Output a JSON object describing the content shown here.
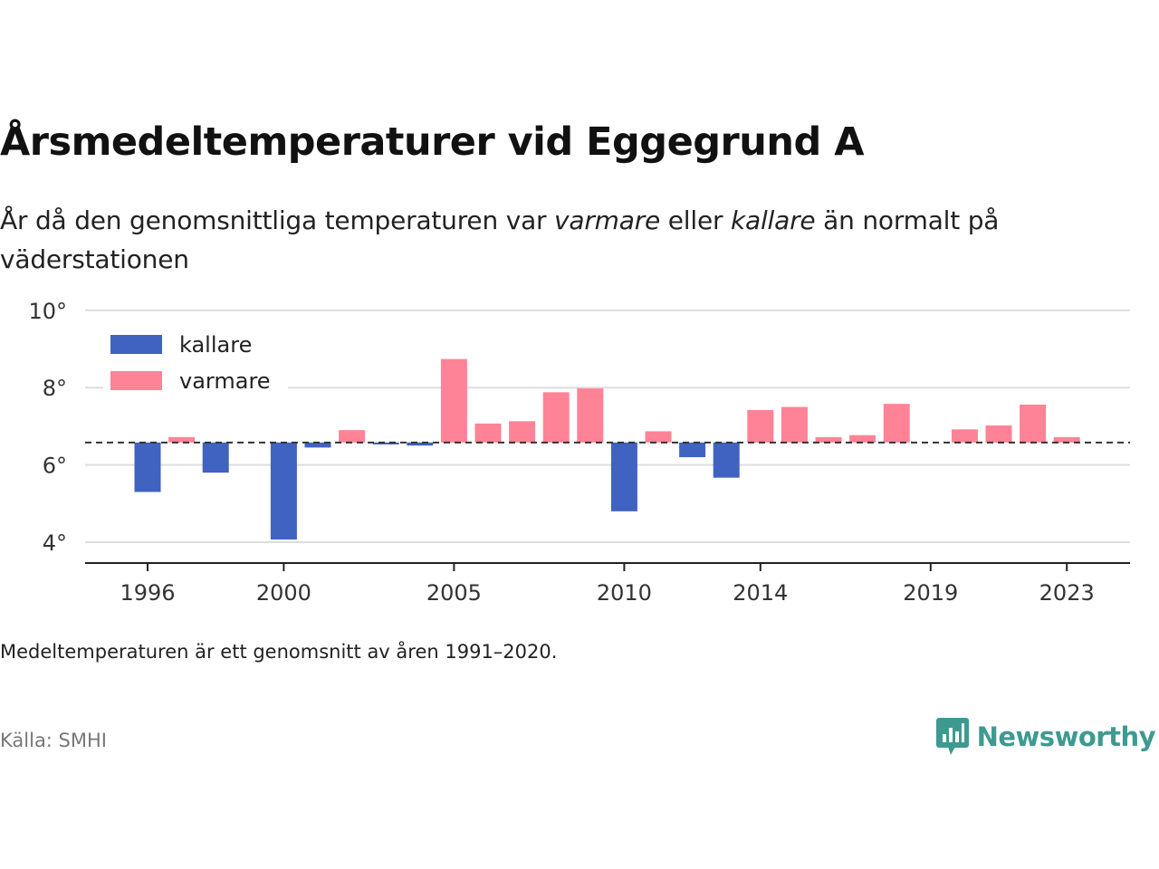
{
  "title": "Årsmedeltemperaturer vid Eggegrund A",
  "subtitle": {
    "part1": "År då den genomsnittliga temperaturen var ",
    "warmer_word": "varmare",
    "part2": " eller ",
    "colder_word": "kallare",
    "part3": " än normalt på väderstationen"
  },
  "note": "Medeltemperaturen är ett genomsnitt av åren 1991–2020.",
  "source": "Källa: SMHI",
  "brand": {
    "name": "Newsworthy",
    "icon": "newsworthy-logo-icon",
    "color": "#3e9a91"
  },
  "colors": {
    "colder": "#4062c0",
    "warmer": "#ff8396",
    "grid": "#dddddd",
    "axis": "#222222",
    "reference": "#333333"
  },
  "chart_data": {
    "type": "bar",
    "reference_value": 6.58,
    "reference_style": "dashed",
    "ylim": [
      3.5,
      10
    ],
    "yticks": [
      4,
      6,
      8,
      10
    ],
    "ytick_labels": [
      "4°",
      "6°",
      "8°",
      "10°"
    ],
    "xticks": [
      1996,
      2000,
      2005,
      2010,
      2014,
      2019,
      2023
    ],
    "xlim": [
      1994.2,
      2025
    ],
    "grid": true,
    "legend": {
      "placement": "top-left",
      "entries": [
        {
          "key": "colder",
          "label": "kallare"
        },
        {
          "key": "warmer",
          "label": "varmare"
        }
      ]
    },
    "series": [
      {
        "name": "kallare",
        "key": "colder",
        "x": [
          1996,
          1998,
          2000,
          2001,
          2003,
          2004,
          2010,
          2012,
          2013
        ],
        "values": [
          5.3,
          5.8,
          4.07,
          6.45,
          6.53,
          6.5,
          4.8,
          6.2,
          5.67
        ]
      },
      {
        "name": "varmare",
        "key": "warmer",
        "x": [
          1997,
          2002,
          2005,
          2006,
          2007,
          2008,
          2009,
          2011,
          2014,
          2015,
          2016,
          2017,
          2018,
          2020,
          2021,
          2022,
          2023
        ],
        "values": [
          6.72,
          6.9,
          8.74,
          7.07,
          7.13,
          7.88,
          7.98,
          6.87,
          7.42,
          7.5,
          6.72,
          6.77,
          7.58,
          6.92,
          7.02,
          7.56,
          6.72
        ]
      }
    ]
  }
}
